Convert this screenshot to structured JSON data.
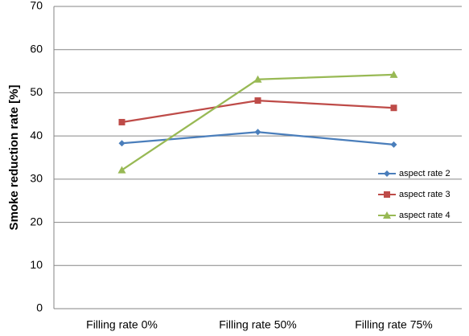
{
  "chart_data": {
    "type": "line",
    "y_label": "Smoke reduction rate [%]",
    "categories": [
      "Filling rate 0%",
      "Filling rate 50%",
      "Filling rate 75%"
    ],
    "series": [
      {
        "name": "aspect rate 2",
        "color": "#4a7ebb",
        "marker": "diamond",
        "values": [
          38.3,
          40.9,
          38.0
        ]
      },
      {
        "name": "aspect rate 3",
        "color": "#be4b48",
        "marker": "square",
        "values": [
          43.2,
          48.2,
          46.5
        ]
      },
      {
        "name": "aspect rate 4",
        "color": "#98b954",
        "marker": "triangle",
        "values": [
          32.1,
          53.1,
          54.2
        ]
      }
    ],
    "ylim": [
      0,
      70
    ],
    "yticks": [
      0,
      10,
      20,
      30,
      40,
      50,
      60,
      70
    ],
    "grid": true,
    "legend_position": "right"
  }
}
